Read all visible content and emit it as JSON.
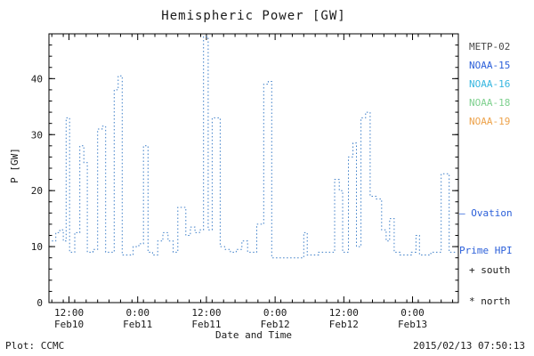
{
  "title": "Hemispheric Power [GW]",
  "footer": {
    "left": "Plot: CCMC",
    "right": "2015/02/13 07:50:13"
  },
  "legend": {
    "satellites": [
      {
        "label": "METP-02",
        "color": "#4a4a4a"
      },
      {
        "label": "NOAA-15",
        "color": "#2b5fd9"
      },
      {
        "label": "NOAA-16",
        "color": "#35b6e0"
      },
      {
        "label": "NOAA-18",
        "color": "#7ed08e"
      },
      {
        "label": "NOAA-19",
        "color": "#eda24a"
      }
    ],
    "ovation_line1": "— Ovation",
    "ovation_line2": "Prime HPI",
    "ovation_color": "#2b5fd9",
    "south_note": "+ south",
    "north_note": "* north"
  },
  "chart_data": {
    "type": "line",
    "style": "dotted-step",
    "title": "Hemispheric Power [GW]",
    "xlabel": "Date and Time",
    "ylabel": "P [GW]",
    "ylim": [
      0,
      48
    ],
    "xlim_hours": [
      8.5,
      80
    ],
    "yticks": [
      0,
      10,
      20,
      30,
      40
    ],
    "y_minor_step": 2,
    "x_minor_step": 2,
    "line_color": "#3c7ec8",
    "grid": false,
    "legend_position": "right",
    "xticks": [
      {
        "hour": 12,
        "time": "12:00",
        "date": "Feb10"
      },
      {
        "hour": 24,
        "time": "0:00",
        "date": "Feb11"
      },
      {
        "hour": 36,
        "time": "12:00",
        "date": "Feb11"
      },
      {
        "hour": 48,
        "time": "0:00",
        "date": "Feb12"
      },
      {
        "hour": 60,
        "time": "12:00",
        "date": "Feb12"
      },
      {
        "hour": 72,
        "time": "0:00",
        "date": "Feb13"
      }
    ],
    "x_hours": [
      9.0,
      9.7,
      10.4,
      11.0,
      11.5,
      12.1,
      13.0,
      13.9,
      14.6,
      15.2,
      16.2,
      17.0,
      17.8,
      18.4,
      19.2,
      19.9,
      20.6,
      21.3,
      22.3,
      23.2,
      24.2,
      25.0,
      25.8,
      26.6,
      27.5,
      28.4,
      29.3,
      30.2,
      31.0,
      31.8,
      32.4,
      33.2,
      34.0,
      34.8,
      35.5,
      36.3,
      37.0,
      37.8,
      38.4,
      39.2,
      40.2,
      41.2,
      42.2,
      43.2,
      44.2,
      44.8,
      45.5,
      46.0,
      46.8,
      47.4,
      48.4,
      49.4,
      50.4,
      51.4,
      52.4,
      53.0,
      53.6,
      54.6,
      55.6,
      56.6,
      57.6,
      58.4,
      59.2,
      59.8,
      60.8,
      61.6,
      62.2,
      63.0,
      63.8,
      64.6,
      65.6,
      66.6,
      67.4,
      68.0,
      68.8,
      69.8,
      70.8,
      71.8,
      72.6,
      73.2,
      74.2,
      75.2,
      76.2,
      77.0,
      77.8,
      78.4,
      79.5
    ],
    "values": [
      11,
      12.5,
      13,
      11,
      33,
      9,
      12.5,
      28,
      25,
      9,
      9.5,
      31,
      31.5,
      9,
      9,
      38,
      40.5,
      8.5,
      8.5,
      10,
      10.5,
      28,
      9,
      8.5,
      11,
      12.5,
      11,
      9,
      17,
      17,
      12,
      13.5,
      12.5,
      13,
      47.5,
      13,
      33,
      33,
      10,
      9.5,
      9,
      9.5,
      11,
      9,
      9,
      14,
      14,
      39,
      39.5,
      8,
      8,
      8,
      8,
      8,
      8,
      12.5,
      8.5,
      8.5,
      9,
      9,
      9,
      22,
      20,
      9,
      26,
      28.5,
      10,
      33,
      34,
      19,
      18.5,
      13,
      11,
      15,
      9,
      8.5,
      8.5,
      9,
      12,
      8.5,
      8.5,
      9,
      9,
      23,
      23,
      9,
      9
    ]
  }
}
